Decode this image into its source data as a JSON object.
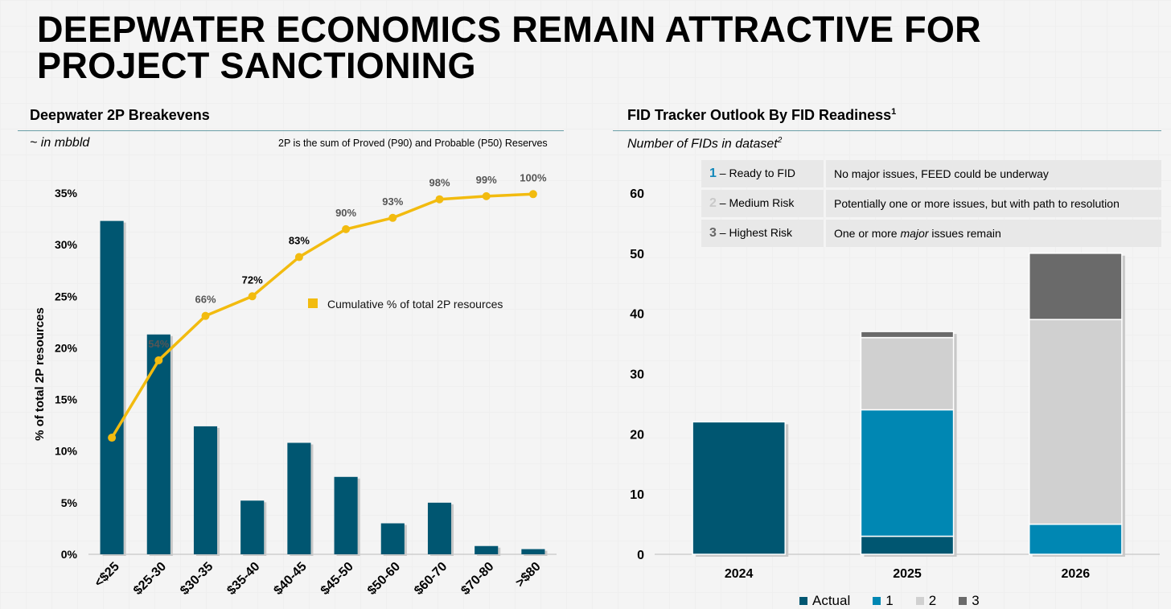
{
  "title": {
    "line1": "DEEPWATER ECONOMICS REMAIN ATTRACTIVE FOR",
    "line2": "PROJECT SANCTIONING"
  },
  "left": {
    "heading": "Deepwater 2P Breakevens",
    "subheading": "~ in mbbld",
    "note": "2P is the sum of Proved (P90) and Probable (P50) Reserves"
  },
  "right": {
    "heading": "FID Tracker Outlook By FID Readiness",
    "heading_sup": "1",
    "subheading": "Number of FIDs in dataset",
    "subheading_sup": "2",
    "legend": [
      {
        "num": "1",
        "label": "– Ready to FID",
        "desc_pre": "No major issues, FEED could be underway",
        "desc_em": "",
        "desc_post": "",
        "color": "#1288ba"
      },
      {
        "num": "2",
        "label": "– Medium Risk",
        "desc_pre": "Potentially one or more issues, but with path to resolution",
        "desc_em": "",
        "desc_post": "",
        "color": "#c9c9c9"
      },
      {
        "num": "3",
        "label": "– Highest Risk",
        "desc_pre": "One or more ",
        "desc_em": "major",
        "desc_post": " issues remain",
        "color": "#666666"
      }
    ],
    "bottom_legend": [
      {
        "name": "Actual",
        "color": "#005671"
      },
      {
        "name": "1",
        "color": "#0087b3"
      },
      {
        "name": "2",
        "color": "#d0d0d0"
      },
      {
        "name": "3",
        "color": "#6a6a6a"
      }
    ]
  },
  "chart_data": [
    {
      "type": "bar",
      "title": "Deepwater 2P Breakevens",
      "xlabel": "",
      "ylabel": "% of total 2P resources",
      "ylim": [
        0,
        35
      ],
      "ytick_labels": [
        "0%",
        "5%",
        "10%",
        "15%",
        "20%",
        "25%",
        "30%",
        "35%"
      ],
      "ytick_values": [
        0,
        5,
        10,
        15,
        20,
        25,
        30,
        35
      ],
      "categories": [
        "<$25",
        "$25-30",
        "$30-35",
        "$35-40",
        "$40-45",
        "$45-50",
        "$50-60",
        "$60-70",
        "$70-80",
        ">$80"
      ],
      "series": [
        {
          "name": "% of total 2P resources",
          "type": "bar",
          "color": "#005671",
          "values": [
            32.3,
            21.3,
            12.4,
            5.2,
            10.8,
            7.5,
            3.0,
            5.0,
            0.8,
            0.5
          ]
        },
        {
          "name": "Cumulative % of total 2P resources",
          "type": "line",
          "color": "#f2bb0f",
          "values": [
            11.3,
            18.8,
            23.1,
            25.0,
            28.8,
            31.5,
            32.6,
            34.4,
            34.7,
            34.9
          ],
          "data_labels": [
            "",
            "54%",
            "66%",
            "72%",
            "83%",
            "90%",
            "93%",
            "98%",
            "99%",
            "100%"
          ],
          "bold_labels": [
            false,
            false,
            false,
            true,
            true,
            false,
            false,
            false,
            false,
            false
          ]
        }
      ],
      "legend_label": "Cumulative % of total 2P resources"
    },
    {
      "type": "stacked-bar",
      "title": "FID Tracker Outlook By FID Readiness",
      "ylabel": "Number of FIDs in dataset",
      "ylim": [
        0,
        60
      ],
      "ytick_labels": [
        "0",
        "10",
        "20",
        "30",
        "40",
        "50",
        "60"
      ],
      "ytick_values": [
        0,
        10,
        20,
        30,
        40,
        50,
        60
      ],
      "categories": [
        "2024",
        "2025",
        "2026"
      ],
      "series": [
        {
          "name": "Actual",
          "color": "#005671",
          "values": [
            22,
            3,
            0
          ]
        },
        {
          "name": "1",
          "color": "#0087b3",
          "values": [
            0,
            21,
            5
          ]
        },
        {
          "name": "2",
          "color": "#d0d0d0",
          "values": [
            0,
            12,
            34
          ]
        },
        {
          "name": "3",
          "color": "#6a6a6a",
          "values": [
            0,
            1,
            11
          ]
        }
      ]
    }
  ]
}
